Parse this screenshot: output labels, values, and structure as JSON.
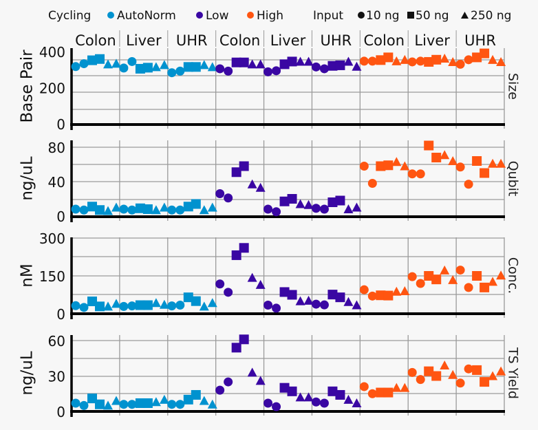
{
  "legend": {
    "cycling_title": "Cycling",
    "cycling": [
      {
        "label": "AutoNorm",
        "color": "#0092cf"
      },
      {
        "label": "Low",
        "color": "#3a07a3"
      },
      {
        "label": "High",
        "color": "#ff5511"
      }
    ],
    "input_title": "Input",
    "input": [
      {
        "label": "10 ng",
        "shape": "circle"
      },
      {
        "label": "50 ng",
        "shape": "square"
      },
      {
        "label": "250 ng",
        "shape": "triangle"
      }
    ]
  },
  "chart_data": {
    "type": "scatter",
    "groups": [
      {
        "cycling": "AutoNorm",
        "tissue": "Colon"
      },
      {
        "cycling": "AutoNorm",
        "tissue": "Liver"
      },
      {
        "cycling": "AutoNorm",
        "tissue": "UHR"
      },
      {
        "cycling": "Low",
        "tissue": "Colon"
      },
      {
        "cycling": "Low",
        "tissue": "Liver"
      },
      {
        "cycling": "Low",
        "tissue": "UHR"
      },
      {
        "cycling": "High",
        "tissue": "Colon"
      },
      {
        "cycling": "High",
        "tissue": "Liver"
      },
      {
        "cycling": "High",
        "tissue": "UHR"
      }
    ],
    "point_inputs": [
      "10 ng",
      "10 ng",
      "50 ng",
      "50 ng",
      "250 ng",
      "250 ng"
    ],
    "grid": true,
    "legend_position": "top",
    "panels": [
      {
        "strip": "Size",
        "ylabel": "Base Pair",
        "ylim": [
          0,
          400
        ],
        "yticks": [
          "0",
          "200",
          "400"
        ],
        "values": [
          [
            317,
            333,
            352,
            359,
            330,
            334
          ],
          [
            309,
            345,
            305,
            311,
            315,
            326
          ],
          [
            283,
            292,
            315,
            315,
            326,
            315
          ],
          [
            305,
            292,
            340,
            340,
            330,
            330
          ],
          [
            288,
            294,
            330,
            345,
            345,
            345
          ],
          [
            315,
            305,
            321,
            324,
            345,
            317
          ],
          [
            347,
            347,
            353,
            368,
            347,
            355
          ],
          [
            343,
            347,
            343,
            355,
            362,
            343
          ],
          [
            330,
            355,
            368,
            390,
            355,
            343
          ]
        ]
      },
      {
        "strip": "Qubit",
        "ylabel": "ng/uL",
        "ylim": [
          0,
          80
        ],
        "yticks": [
          "0",
          "40",
          "80"
        ],
        "values": [
          [
            8,
            7,
            11,
            7,
            6,
            10
          ],
          [
            8,
            7,
            9,
            8,
            7,
            10
          ],
          [
            7,
            7,
            11,
            14,
            7,
            10
          ],
          [
            26,
            21,
            51,
            58,
            37,
            33
          ],
          [
            8,
            5,
            17,
            20,
            14,
            13
          ],
          [
            9,
            8,
            16,
            18,
            8,
            10
          ],
          [
            58,
            38,
            58,
            59,
            63,
            58
          ],
          [
            49,
            49,
            82,
            68,
            71,
            64
          ],
          [
            57,
            37,
            64,
            50,
            61,
            61
          ]
        ]
      },
      {
        "strip": "Conc.",
        "ylabel": "nM",
        "ylim": [
          0,
          300
        ],
        "yticks": [
          "0",
          "150",
          "300"
        ],
        "values": [
          [
            32,
            25,
            49,
            29,
            29,
            40
          ],
          [
            29,
            31,
            34,
            34,
            43,
            36
          ],
          [
            31,
            34,
            65,
            50,
            29,
            43
          ],
          [
            118,
            85,
            232,
            261,
            143,
            115
          ],
          [
            34,
            22,
            86,
            75,
            50,
            52
          ],
          [
            38,
            35,
            76,
            65,
            47,
            34
          ],
          [
            95,
            70,
            73,
            72,
            88,
            90
          ],
          [
            147,
            120,
            150,
            136,
            172,
            134
          ],
          [
            173,
            104,
            150,
            104,
            127,
            152
          ]
        ]
      },
      {
        "strip": "TS Yield",
        "ylabel": "ng/uL",
        "ylim": [
          0,
          60
        ],
        "yticks": [
          "0",
          "30",
          "60"
        ],
        "values": [
          [
            7,
            5,
            11,
            6,
            5,
            9
          ],
          [
            6,
            6,
            7,
            7,
            8,
            10
          ],
          [
            6,
            6,
            10,
            14,
            9,
            6
          ],
          [
            18,
            25,
            54,
            61,
            33,
            26
          ],
          [
            7,
            4,
            20,
            17,
            12,
            12
          ],
          [
            8,
            7,
            17,
            14,
            10,
            7
          ],
          [
            21,
            15,
            16,
            16,
            20,
            20
          ],
          [
            33,
            27,
            34,
            30,
            39,
            31
          ],
          [
            24,
            36,
            35,
            25,
            30,
            34
          ]
        ]
      }
    ]
  }
}
